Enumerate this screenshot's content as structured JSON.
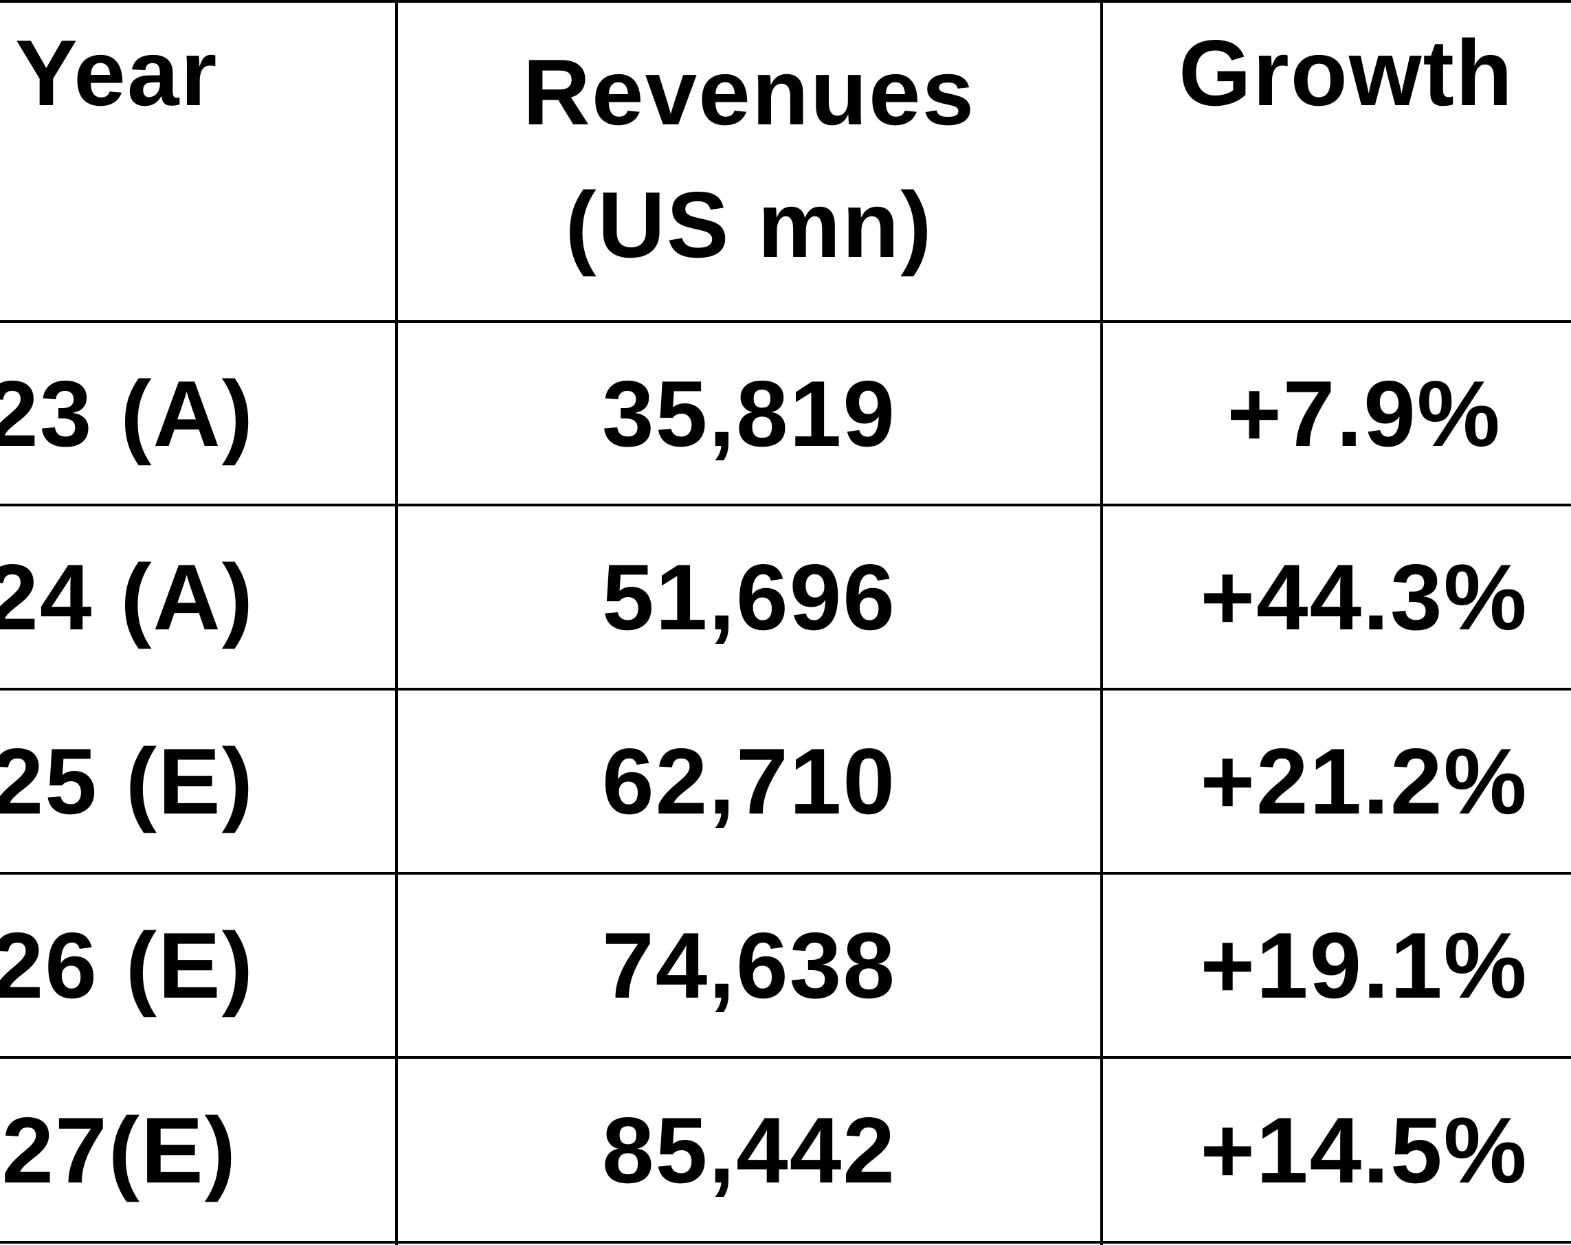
{
  "table": {
    "headers": {
      "year": "Year",
      "revenues_line1": "Revenues",
      "revenues_line2": "(US mn)",
      "growth": "Growth"
    },
    "rows": [
      {
        "year": "23 (A)",
        "revenues": "35,819",
        "growth": "+7.9%"
      },
      {
        "year": "24 (A)",
        "revenues": "51,696",
        "growth": "+44.3%"
      },
      {
        "year": "25 (E)",
        "revenues": "62,710",
        "growth": "+21.2%"
      },
      {
        "year": "26 (E)",
        "revenues": "74,638",
        "growth": "+19.1%"
      },
      {
        "year": "27(E)",
        "revenues": "85,442",
        "growth": "+14.5%"
      }
    ]
  }
}
